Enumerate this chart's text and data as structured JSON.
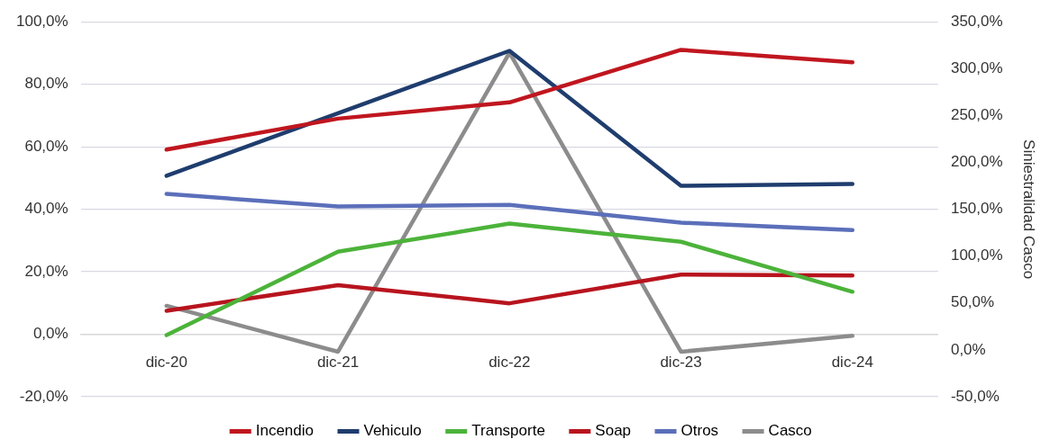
{
  "chart_data": {
    "type": "line",
    "y2label": "Siniestralidad Casco",
    "categories": [
      "dic-20",
      "dic-21",
      "dic-22",
      "dic-23",
      "dic-24"
    ],
    "series": [
      {
        "name": "Incendio",
        "color": "#c0161f",
        "values": [
          59.1,
          69,
          74.2,
          91,
          87
        ]
      },
      {
        "name": "Vehiculo",
        "color": "#1f3d6e",
        "values": [
          50.7,
          70.7,
          90.7,
          47.5,
          48.1
        ]
      },
      {
        "name": "Transporte",
        "color": "#4cb33a",
        "values": [
          -0.3,
          26.4,
          35.4,
          29.6,
          13.6
        ]
      },
      {
        "name": "Soap",
        "color": "#b8141e",
        "values": [
          7.5,
          15.7,
          9.9,
          19.1,
          18.8
        ]
      },
      {
        "name": "Otros",
        "color": "#5b6fba",
        "values": [
          44.9,
          40.9,
          41.4,
          35.7,
          33.3
        ]
      },
      {
        "name": "Casco",
        "color": "#8c8c8c",
        "axis": "y2",
        "values": [
          47,
          -2,
          317,
          -2,
          15
        ]
      }
    ],
    "ylim": [
      -20,
      100
    ],
    "yticks": [
      {
        "value": -20,
        "label": "-20,0%"
      },
      {
        "value": 0,
        "label": "0,0%"
      },
      {
        "value": 20,
        "label": "20,0%"
      },
      {
        "value": 40,
        "label": "40,0%"
      },
      {
        "value": 60,
        "label": "60,0%"
      },
      {
        "value": 80,
        "label": "80,0%"
      },
      {
        "value": 100,
        "label": "100,0%"
      }
    ],
    "y2lim": [
      -50,
      350
    ],
    "y2ticks": [
      {
        "value": -50,
        "label": "-50,0%"
      },
      {
        "value": 0,
        "label": "0,0%"
      },
      {
        "value": 50,
        "label": "50,0%"
      },
      {
        "value": 100,
        "label": "100,0%"
      },
      {
        "value": 150,
        "label": "150,0%"
      },
      {
        "value": 200,
        "label": "200,0%"
      },
      {
        "value": 250,
        "label": "250,0%"
      },
      {
        "value": 300,
        "label": "300,0%"
      },
      {
        "value": 350,
        "label": "350,0%"
      }
    ],
    "grid": "y",
    "legend": "bottom",
    "marker": "none",
    "line_style": "solid"
  }
}
